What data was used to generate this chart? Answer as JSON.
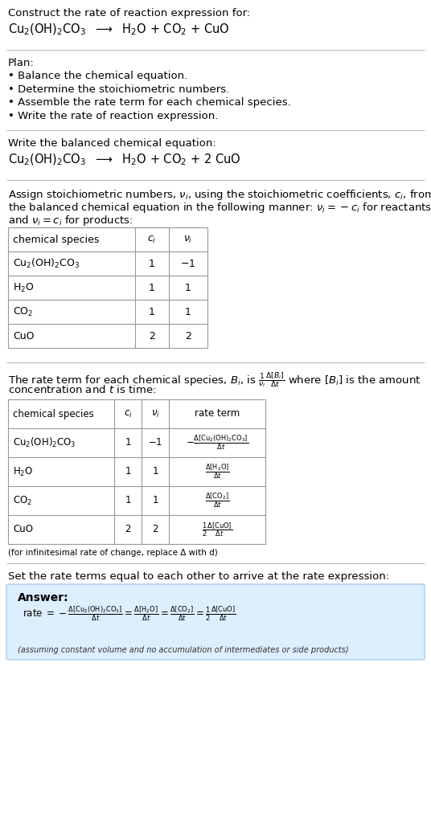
{
  "bg_color": "#ffffff",
  "text_color": "#000000",
  "answer_bg": "#ddeeff",
  "answer_border": "#aaccee",
  "title_line1": "Construct the rate of reaction expression for:",
  "title_line2": "Cu$_2$(OH)$_2$CO$_3$  $\\longrightarrow$  H$_2$O + CO$_2$ + CuO",
  "plan_header": "Plan:",
  "plan_bullets": [
    "• Balance the chemical equation.",
    "• Determine the stoichiometric numbers.",
    "• Assemble the rate term for each chemical species.",
    "• Write the rate of reaction expression."
  ],
  "balanced_header": "Write the balanced chemical equation:",
  "balanced_eq": "Cu$_2$(OH)$_2$CO$_3$  $\\longrightarrow$  H$_2$O + CO$_2$ + 2 CuO",
  "stoich_intro1": "Assign stoichiometric numbers, $\\nu_i$, using the stoichiometric coefficients, $c_i$, from",
  "stoich_intro2": "the balanced chemical equation in the following manner: $\\nu_i = -c_i$ for reactants",
  "stoich_intro3": "and $\\nu_i = c_i$ for products:",
  "table1_col_headers": [
    "chemical species",
    "$c_i$",
    "$\\nu_i$"
  ],
  "table1_rows": [
    [
      "Cu$_2$(OH)$_2$CO$_3$",
      "1",
      "$-$1"
    ],
    [
      "H$_2$O",
      "1",
      "1"
    ],
    [
      "CO$_2$",
      "1",
      "1"
    ],
    [
      "CuO",
      "2",
      "2"
    ]
  ],
  "rate_intro1": "The rate term for each chemical species, $B_i$, is $\\frac{1}{\\nu_i}\\frac{\\Delta[B_i]}{\\Delta t}$ where $[B_i]$ is the amount",
  "rate_intro2": "concentration and $t$ is time:",
  "table2_col_headers": [
    "chemical species",
    "$c_i$",
    "$\\nu_i$",
    "rate term"
  ],
  "table2_rows": [
    [
      "Cu$_2$(OH)$_2$CO$_3$",
      "1",
      "$-1$",
      "$-\\frac{\\Delta[\\mathrm{Cu_2(OH)_2CO_3}]}{\\Delta t}$"
    ],
    [
      "H$_2$O",
      "1",
      "1",
      "$\\frac{\\Delta[\\mathrm{H_2O}]}{\\Delta t}$"
    ],
    [
      "CO$_2$",
      "1",
      "1",
      "$\\frac{\\Delta[\\mathrm{CO_2}]}{\\Delta t}$"
    ],
    [
      "CuO",
      "2",
      "2",
      "$\\frac{1}{2}\\frac{\\Delta[\\mathrm{CuO}]}{\\Delta t}$"
    ]
  ],
  "infinitesimal_note": "(for infinitesimal rate of change, replace Δ with d)",
  "set_equal_text": "Set the rate terms equal to each other to arrive at the rate expression:",
  "answer_label": "Answer:",
  "answer_note": "(assuming constant volume and no accumulation of intermediates or side products)"
}
